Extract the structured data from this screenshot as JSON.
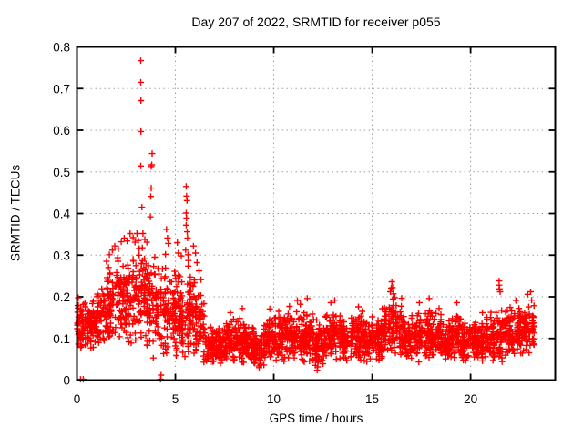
{
  "chart_data": {
    "type": "scatter",
    "title": "Day 207 of 2022, SRMTID for receiver p055",
    "xlabel": "GPS time / hours",
    "ylabel": "SRMTID / TECUs",
    "xlim": [
      0,
      24.3
    ],
    "ylim": [
      0,
      0.8
    ],
    "xticks": [
      0,
      5,
      10,
      15,
      20
    ],
    "yticks": [
      0,
      0.1,
      0.2,
      0.3,
      0.4,
      0.5,
      0.6,
      0.7,
      0.8
    ],
    "grid": true,
    "legend": "none",
    "marker": "plus",
    "colors": {
      "points": "#ff0000",
      "grid": "#a0a0a0",
      "frame": "#000000",
      "text": "#000000",
      "background": "#ffffff"
    },
    "seed": 11,
    "peak_points": [
      [
        0.18,
        0.002
      ],
      [
        0.32,
        0.002
      ],
      [
        4.25,
        0.002
      ],
      [
        4.27,
        0.012
      ],
      [
        3.24,
        0.767
      ],
      [
        3.24,
        0.715
      ],
      [
        3.25,
        0.671
      ],
      [
        3.25,
        0.597
      ],
      [
        3.24,
        0.514
      ],
      [
        3.82,
        0.544
      ],
      [
        3.8,
        0.517
      ],
      [
        3.77,
        0.513
      ],
      [
        3.77,
        0.461
      ],
      [
        3.75,
        0.441
      ],
      [
        3.73,
        0.392
      ],
      [
        3.3,
        0.415
      ],
      [
        5.55,
        0.465
      ],
      [
        5.57,
        0.442
      ],
      [
        5.59,
        0.431
      ],
      [
        5.55,
        0.401
      ],
      [
        5.57,
        0.389
      ],
      [
        5.55,
        0.372
      ],
      [
        5.6,
        0.356
      ],
      [
        5.62,
        0.341
      ],
      [
        5.52,
        0.312
      ],
      [
        5.64,
        0.301
      ],
      [
        5.66,
        0.287
      ],
      [
        4.55,
        0.362
      ],
      [
        4.6,
        0.341
      ],
      [
        4.64,
        0.328
      ],
      [
        4.5,
        0.302
      ],
      [
        5.1,
        0.33
      ],
      [
        5.15,
        0.305
      ],
      [
        5.3,
        0.298
      ],
      [
        1.5,
        0.285
      ],
      [
        1.65,
        0.301
      ],
      [
        1.8,
        0.312
      ],
      [
        1.92,
        0.322
      ],
      [
        2.1,
        0.315
      ],
      [
        2.25,
        0.332
      ],
      [
        2.4,
        0.341
      ],
      [
        2.55,
        0.334
      ],
      [
        2.7,
        0.352
      ],
      [
        2.85,
        0.342
      ],
      [
        2.95,
        0.331
      ],
      [
        3.05,
        0.352
      ],
      [
        3.12,
        0.335
      ],
      [
        3.35,
        0.352
      ],
      [
        3.45,
        0.338
      ],
      [
        3.55,
        0.331
      ],
      [
        5.92,
        0.322
      ],
      [
        6.02,
        0.305
      ],
      [
        6.1,
        0.282
      ],
      [
        6.2,
        0.262
      ],
      [
        6.3,
        0.241
      ],
      [
        7.8,
        0.162
      ],
      [
        8.4,
        0.172
      ],
      [
        9.8,
        0.171
      ],
      [
        10.25,
        0.165
      ],
      [
        10.8,
        0.177
      ],
      [
        11.2,
        0.191
      ],
      [
        11.35,
        0.182
      ],
      [
        11.7,
        0.196
      ],
      [
        12.9,
        0.186
      ],
      [
        13.1,
        0.192
      ],
      [
        14.3,
        0.176
      ],
      [
        15.0,
        0.152
      ],
      [
        15.92,
        0.212
      ],
      [
        15.97,
        0.221
      ],
      [
        16.0,
        0.236
      ],
      [
        16.04,
        0.222
      ],
      [
        16.08,
        0.207
      ],
      [
        16.15,
        0.198
      ],
      [
        17.4,
        0.186
      ],
      [
        17.9,
        0.196
      ],
      [
        18.4,
        0.172
      ],
      [
        19.3,
        0.186
      ],
      [
        20.6,
        0.162
      ],
      [
        21.45,
        0.238
      ],
      [
        21.45,
        0.228
      ],
      [
        21.47,
        0.219
      ],
      [
        21.5,
        0.212
      ],
      [
        22.3,
        0.191
      ],
      [
        22.9,
        0.206
      ],
      [
        23.05,
        0.212
      ],
      [
        23.1,
        0.192
      ]
    ],
    "noise_band_bin_format": "[t_start_hours, t_end_hours, value_min_TECUs, value_max_TECUs, point_count]",
    "noise_band_bins": [
      [
        0.0,
        0.5,
        0.05,
        0.21,
        60
      ],
      [
        0.5,
        1.0,
        0.07,
        0.2,
        60
      ],
      [
        1.0,
        1.5,
        0.08,
        0.24,
        60
      ],
      [
        1.5,
        2.0,
        0.09,
        0.28,
        60
      ],
      [
        2.0,
        2.5,
        0.09,
        0.3,
        60
      ],
      [
        2.5,
        3.0,
        0.06,
        0.32,
        60
      ],
      [
        3.0,
        3.5,
        0.08,
        0.34,
        60
      ],
      [
        3.5,
        4.0,
        0.05,
        0.31,
        60
      ],
      [
        4.0,
        4.5,
        0.04,
        0.3,
        60
      ],
      [
        4.5,
        5.0,
        0.05,
        0.27,
        60
      ],
      [
        5.0,
        5.5,
        0.04,
        0.26,
        60
      ],
      [
        5.5,
        6.0,
        0.05,
        0.28,
        60
      ],
      [
        6.0,
        6.5,
        0.04,
        0.22,
        60
      ],
      [
        6.5,
        7.0,
        0.03,
        0.13,
        60
      ],
      [
        7.0,
        7.5,
        0.03,
        0.14,
        60
      ],
      [
        7.5,
        8.0,
        0.03,
        0.15,
        60
      ],
      [
        8.0,
        8.5,
        0.03,
        0.16,
        60
      ],
      [
        8.5,
        9.0,
        0.03,
        0.14,
        60
      ],
      [
        9.0,
        9.5,
        0.02,
        0.13,
        60
      ],
      [
        9.5,
        10.0,
        0.04,
        0.16,
        60
      ],
      [
        10.0,
        10.5,
        0.04,
        0.16,
        60
      ],
      [
        10.5,
        11.0,
        0.04,
        0.17,
        60
      ],
      [
        11.0,
        11.5,
        0.04,
        0.17,
        60
      ],
      [
        11.5,
        12.0,
        0.03,
        0.17,
        60
      ],
      [
        12.0,
        12.5,
        0.02,
        0.15,
        60
      ],
      [
        12.5,
        13.0,
        0.04,
        0.16,
        60
      ],
      [
        13.0,
        13.5,
        0.04,
        0.17,
        60
      ],
      [
        13.5,
        14.0,
        0.04,
        0.16,
        60
      ],
      [
        14.0,
        14.5,
        0.04,
        0.17,
        60
      ],
      [
        14.5,
        15.0,
        0.04,
        0.15,
        60
      ],
      [
        15.0,
        15.5,
        0.04,
        0.15,
        60
      ],
      [
        15.5,
        16.0,
        0.05,
        0.19,
        60
      ],
      [
        16.0,
        16.5,
        0.05,
        0.2,
        60
      ],
      [
        16.5,
        17.0,
        0.04,
        0.16,
        60
      ],
      [
        17.0,
        17.5,
        0.04,
        0.17,
        60
      ],
      [
        17.5,
        18.0,
        0.04,
        0.18,
        60
      ],
      [
        18.0,
        18.5,
        0.04,
        0.17,
        60
      ],
      [
        18.5,
        19.0,
        0.04,
        0.16,
        60
      ],
      [
        19.0,
        19.5,
        0.04,
        0.17,
        60
      ],
      [
        19.5,
        20.0,
        0.04,
        0.15,
        60
      ],
      [
        20.0,
        20.5,
        0.04,
        0.15,
        60
      ],
      [
        20.5,
        21.0,
        0.04,
        0.16,
        60
      ],
      [
        21.0,
        21.5,
        0.04,
        0.17,
        60
      ],
      [
        21.5,
        22.0,
        0.04,
        0.19,
        60
      ],
      [
        22.0,
        22.5,
        0.05,
        0.18,
        60
      ],
      [
        22.5,
        23.0,
        0.05,
        0.19,
        60
      ],
      [
        23.0,
        23.25,
        0.06,
        0.2,
        30
      ]
    ]
  }
}
